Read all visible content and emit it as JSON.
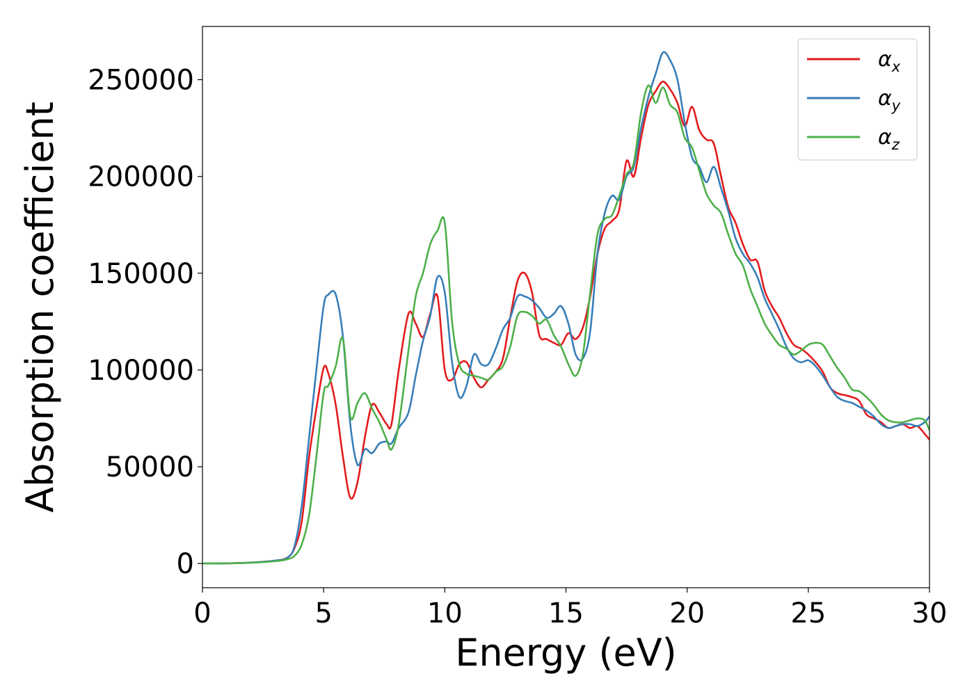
{
  "chart_data": {
    "type": "line",
    "title": "",
    "xlabel": "Energy (eV)",
    "ylabel": "Absorption coefficient",
    "xlim": [
      0,
      30
    ],
    "ylim": [
      -12500,
      277500
    ],
    "xticks": [
      0,
      5,
      10,
      15,
      20,
      25,
      30
    ],
    "xtick_labels": [
      "0",
      "5",
      "10",
      "15",
      "20",
      "25",
      "30"
    ],
    "yticks": [
      0,
      50000,
      100000,
      150000,
      200000,
      250000
    ],
    "ytick_labels": [
      "0",
      "50000",
      "100000",
      "150000",
      "200000",
      "250000"
    ],
    "grid": false,
    "legend_position": "top-right",
    "series": [
      {
        "name": "α_x",
        "label_main": "α",
        "label_sub": "x",
        "color": "#e41a1c",
        "x": [
          0,
          1,
          2,
          3,
          3.5,
          3.8,
          4.1,
          4.4,
          4.7,
          5.0,
          5.2,
          5.5,
          5.8,
          6.1,
          6.4,
          6.7,
          7.0,
          7.3,
          7.6,
          7.8,
          8.1,
          8.5,
          8.8,
          9.1,
          9.4,
          9.7,
          10.0,
          10.3,
          10.6,
          10.9,
          11.2,
          11.5,
          11.8,
          12.1,
          12.4,
          12.7,
          13.0,
          13.3,
          13.6,
          13.9,
          14.2,
          14.5,
          14.8,
          15.1,
          15.4,
          15.7,
          16.0,
          16.3,
          16.6,
          16.9,
          17.2,
          17.5,
          17.8,
          18.1,
          18.4,
          18.7,
          19.0,
          19.3,
          19.6,
          19.9,
          20.2,
          20.5,
          20.8,
          21.1,
          21.4,
          21.7,
          22.0,
          22.3,
          22.6,
          22.9,
          23.2,
          23.5,
          23.8,
          24.1,
          24.4,
          24.7,
          25.0,
          25.3,
          25.6,
          25.9,
          26.2,
          26.5,
          26.8,
          27.1,
          27.4,
          27.7,
          28.0,
          28.3,
          28.6,
          28.9,
          29.2,
          29.5,
          29.8,
          30.0
        ],
        "y": [
          0,
          100,
          500,
          1500,
          3000,
          8000,
          22000,
          55000,
          80000,
          101000,
          98000,
          82000,
          55000,
          34000,
          42000,
          65000,
          82000,
          78000,
          72000,
          72000,
          100000,
          129000,
          124000,
          117000,
          129000,
          138000,
          100000,
          95000,
          103000,
          104000,
          96000,
          91000,
          95000,
          99000,
          106000,
          127000,
          146000,
          150000,
          140000,
          118000,
          116000,
          114000,
          113000,
          119000,
          116000,
          122000,
          138000,
          160000,
          173000,
          177000,
          183000,
          208000,
          200000,
          220000,
          237000,
          244000,
          249000,
          245000,
          238000,
          226000,
          236000,
          224000,
          219000,
          217000,
          200000,
          184000,
          176000,
          165000,
          157000,
          156000,
          141000,
          133000,
          127000,
          119000,
          113000,
          111000,
          108000,
          104000,
          99000,
          91000,
          88000,
          87000,
          86000,
          84000,
          77000,
          75000,
          73000,
          70000,
          71000,
          72000,
          70000,
          71000,
          67000,
          64000
        ]
      },
      {
        "name": "α_y",
        "label_main": "α",
        "label_sub": "y",
        "color": "#377eb8",
        "x": [
          0,
          1,
          2,
          3,
          3.5,
          3.8,
          4.1,
          4.4,
          4.7,
          5.0,
          5.2,
          5.5,
          5.8,
          6.1,
          6.4,
          6.7,
          7.0,
          7.3,
          7.6,
          7.8,
          8.1,
          8.5,
          8.8,
          9.1,
          9.4,
          9.7,
          10.0,
          10.3,
          10.6,
          10.9,
          11.2,
          11.5,
          11.8,
          12.1,
          12.4,
          12.7,
          13.0,
          13.3,
          13.6,
          13.9,
          14.2,
          14.5,
          14.8,
          15.1,
          15.4,
          15.7,
          16.0,
          16.3,
          16.6,
          16.9,
          17.2,
          17.5,
          17.8,
          18.1,
          18.4,
          18.7,
          19.0,
          19.3,
          19.6,
          19.9,
          20.2,
          20.5,
          20.8,
          21.1,
          21.4,
          21.7,
          22.0,
          22.3,
          22.6,
          22.9,
          23.2,
          23.5,
          23.8,
          24.1,
          24.4,
          24.7,
          25.0,
          25.3,
          25.6,
          25.9,
          26.2,
          26.5,
          26.8,
          27.1,
          27.4,
          27.7,
          28.0,
          28.3,
          28.6,
          28.9,
          29.2,
          29.5,
          29.8,
          30.0
        ],
        "y": [
          0,
          100,
          500,
          1500,
          3000,
          9000,
          30000,
          65000,
          100000,
          133000,
          139000,
          139000,
          117000,
          72000,
          51000,
          59000,
          57000,
          62000,
          63000,
          62000,
          70000,
          78000,
          97000,
          115000,
          128000,
          148000,
          140000,
          104000,
          86000,
          92000,
          108000,
          103000,
          103000,
          111000,
          121000,
          127000,
          138000,
          138000,
          136000,
          132000,
          127000,
          129000,
          133000,
          124000,
          108000,
          106000,
          120000,
          160000,
          181000,
          190000,
          188000,
          200000,
          205000,
          225000,
          241000,
          253000,
          264000,
          260000,
          250000,
          228000,
          210000,
          205000,
          197000,
          205000,
          194000,
          182000,
          168000,
          160000,
          155000,
          148000,
          137000,
          129000,
          121000,
          112000,
          106000,
          104000,
          105000,
          102000,
          97000,
          91000,
          86000,
          84000,
          83000,
          81000,
          79000,
          76000,
          72000,
          70000,
          71000,
          72000,
          72000,
          71000,
          73000,
          76000
        ]
      },
      {
        "name": "α_z",
        "label_main": "α",
        "label_sub": "z",
        "color": "#4daf4a",
        "x": [
          0,
          1,
          2,
          3,
          3.5,
          3.8,
          4.1,
          4.4,
          4.7,
          5.0,
          5.2,
          5.5,
          5.8,
          6.1,
          6.4,
          6.7,
          7.0,
          7.3,
          7.6,
          7.8,
          8.1,
          8.5,
          8.8,
          9.1,
          9.4,
          9.7,
          10.0,
          10.3,
          10.6,
          10.9,
          11.2,
          11.5,
          11.8,
          12.1,
          12.4,
          12.7,
          13.0,
          13.3,
          13.6,
          13.9,
          14.2,
          14.5,
          14.8,
          15.1,
          15.4,
          15.7,
          16.0,
          16.3,
          16.6,
          16.9,
          17.2,
          17.5,
          17.8,
          18.1,
          18.4,
          18.7,
          19.0,
          19.3,
          19.6,
          19.9,
          20.2,
          20.5,
          20.8,
          21.1,
          21.4,
          21.7,
          22.0,
          22.3,
          22.6,
          22.9,
          23.2,
          23.5,
          23.8,
          24.1,
          24.4,
          24.7,
          25.0,
          25.3,
          25.6,
          25.9,
          26.2,
          26.5,
          26.8,
          27.1,
          27.4,
          27.7,
          28.0,
          28.3,
          28.6,
          28.9,
          29.2,
          29.5,
          29.8,
          30.0
        ],
        "y": [
          0,
          100,
          400,
          1200,
          2200,
          4000,
          10000,
          25000,
          55000,
          88000,
          92000,
          102000,
          116000,
          76000,
          83000,
          88000,
          80000,
          73000,
          64000,
          59000,
          72000,
          110000,
          138000,
          150000,
          165000,
          172000,
          176000,
          125000,
          103000,
          98000,
          97000,
          96000,
          95000,
          99000,
          102000,
          112000,
          128000,
          130000,
          128000,
          124000,
          126000,
          118000,
          112000,
          103000,
          97000,
          108000,
          140000,
          170000,
          178000,
          180000,
          190000,
          201000,
          207000,
          233000,
          247000,
          238000,
          246000,
          237000,
          233000,
          220000,
          215000,
          203000,
          191000,
          185000,
          181000,
          170000,
          160000,
          154000,
          142000,
          133000,
          124000,
          118000,
          113000,
          111000,
          108000,
          110000,
          113000,
          114000,
          113000,
          107000,
          101000,
          96000,
          90000,
          89000,
          86000,
          82000,
          77000,
          74000,
          73000,
          73000,
          74000,
          75000,
          74000,
          69000
        ]
      }
    ]
  }
}
